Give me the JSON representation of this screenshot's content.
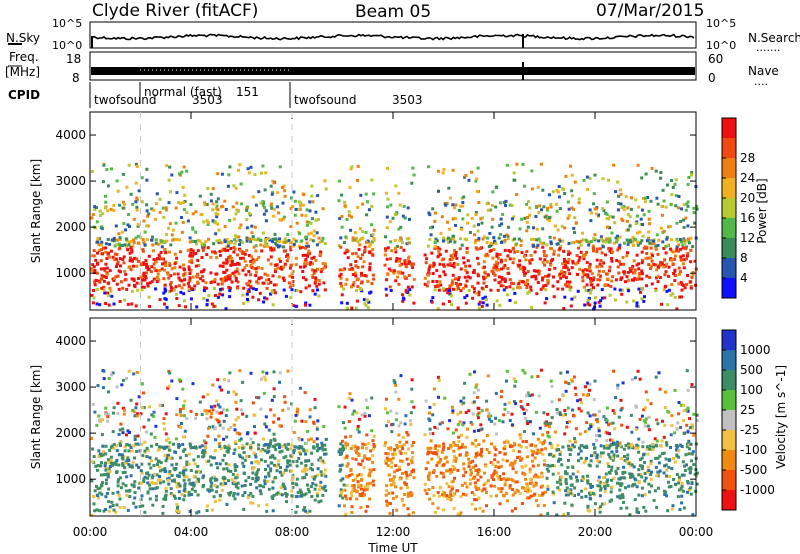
{
  "header": {
    "station": "Clyde River (fitACF)",
    "beam": "Beam 05",
    "date": "07/Mar/2015"
  },
  "noise_panel": {
    "left_label": "N.Sky",
    "right_label": "N.Search",
    "left_ticks": [
      "10^5",
      "10^0"
    ],
    "right_ticks": [
      "10^5",
      "10^0"
    ],
    "legend_marker": "·······"
  },
  "freq_panel": {
    "left_label_line1": "Freq.",
    "left_label_line2": "[MHz]",
    "left_ticks": [
      "18",
      "8"
    ],
    "right_label": "Nave",
    "right_ticks": [
      "60",
      "0"
    ],
    "legend_marker": "····"
  },
  "cpid_panel": {
    "label": "CPID",
    "segments": [
      {
        "name": "twofsound",
        "id": "3503",
        "start_hour": 0
      },
      {
        "name": "normal (fast)",
        "id": "151",
        "start_hour": 2
      },
      {
        "name": "twofsound",
        "id": "3503",
        "start_hour": 8
      }
    ]
  },
  "chart_data": [
    {
      "type": "heatmap",
      "name": "power",
      "ylabel": "Slant Range [km]",
      "y_ticks": [
        "1000",
        "2000",
        "3000",
        "4000"
      ],
      "ylim": [
        200,
        4500
      ],
      "xlim_hours": [
        0,
        24
      ],
      "colorbar_label": "Power [dB]",
      "colorbar_ticks": [
        "4",
        "8",
        "12",
        "16",
        "20",
        "24",
        "28"
      ],
      "colorbar_colors": [
        "#1010ff",
        "#2855b0",
        "#3a8a5a",
        "#52b847",
        "#b8c830",
        "#f0b020",
        "#ef8010",
        "#f04a10",
        "#ee1010"
      ],
      "dominant_band_km": [
        600,
        1800
      ],
      "peak_power_db": 28
    },
    {
      "type": "heatmap",
      "name": "velocity",
      "ylabel": "Slant Range [km]",
      "y_ticks": [
        "1000",
        "2000",
        "3000",
        "4000"
      ],
      "ylim": [
        200,
        4500
      ],
      "xlim_hours": [
        0,
        24
      ],
      "colorbar_label": "Velocity [m s^-1]",
      "colorbar_ticks": [
        "1000",
        "500",
        "100",
        "25",
        "-25",
        "-100",
        "-500",
        "-1000"
      ],
      "colorbar_colors": [
        "#2233cc",
        "#2a72a8",
        "#3e8c64",
        "#5abf3a",
        "#c0c0c0",
        "#f0c040",
        "#f08a10",
        "#f05010",
        "#ee1010"
      ]
    }
  ],
  "time_axis": {
    "label": "Time UT",
    "ticks": [
      "00:00",
      "04:00",
      "08:00",
      "12:00",
      "16:00",
      "20:00",
      "00:00"
    ]
  }
}
